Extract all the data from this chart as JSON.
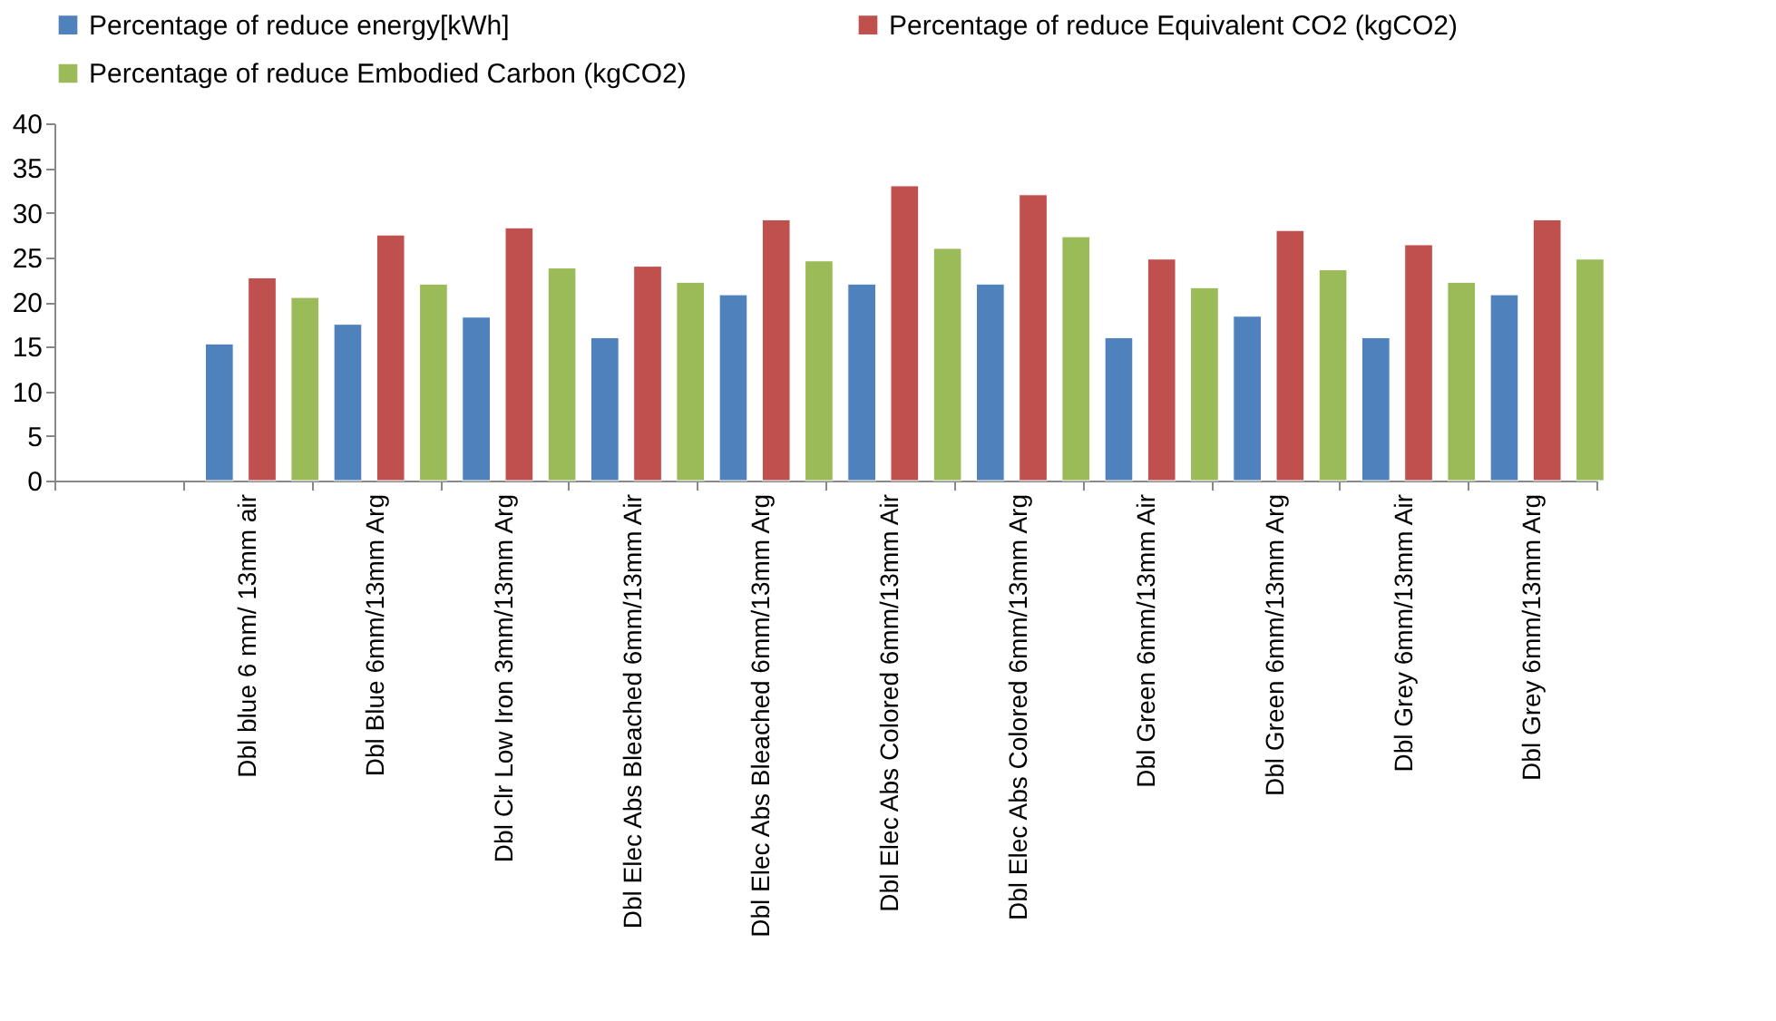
{
  "chart_data": {
    "type": "bar",
    "categories": [
      null,
      "Dbl blue 6 mm/ 13mm air",
      "Dbl Blue 6mm/13mm Arg",
      "Dbl Clr Low Iron 3mm/13mm Arg",
      "Dbl Elec Abs Bleached 6mm/13mm Air",
      "Dbl Elec Abs Bleached 6mm/13mm Arg",
      "Dbl Elec Abs Colored 6mm/13mm Air",
      "Dbl Elec Abs Colored 6mm/13mm Arg",
      "Dbl Green 6mm/13mm Air",
      "Dbl Green 6mm/13mm Arg",
      "Dbl Grey 6mm/13mm Air",
      "Dbl Grey 6mm/13mm Arg"
    ],
    "series": [
      {
        "name": "Percentage of reduce energy[kWh]",
        "color": "#4f81bd",
        "values": [
          null,
          15.3,
          17.5,
          18.3,
          16,
          20.8,
          22,
          22,
          16,
          18.4,
          16,
          20.8
        ]
      },
      {
        "name": "Percentage of reduce Equivalent CO2 (kgCO2)",
        "color": "#c0504d",
        "values": [
          null,
          22.7,
          27.5,
          28.3,
          24,
          29.2,
          33,
          32,
          24.8,
          28,
          26.4,
          29.2
        ]
      },
      {
        "name": "Percentage of reduce Embodied Carbon (kgCO2)",
        "color": "#9bbb59",
        "values": [
          null,
          20.5,
          22,
          23.8,
          22.2,
          24.6,
          26,
          27.3,
          21.6,
          23.6,
          22.2,
          24.8
        ]
      }
    ],
    "ylim": [
      0,
      40
    ],
    "yticks": [
      0,
      5,
      10,
      15,
      20,
      25,
      30,
      35,
      40
    ],
    "grid": false,
    "legend": "top"
  }
}
